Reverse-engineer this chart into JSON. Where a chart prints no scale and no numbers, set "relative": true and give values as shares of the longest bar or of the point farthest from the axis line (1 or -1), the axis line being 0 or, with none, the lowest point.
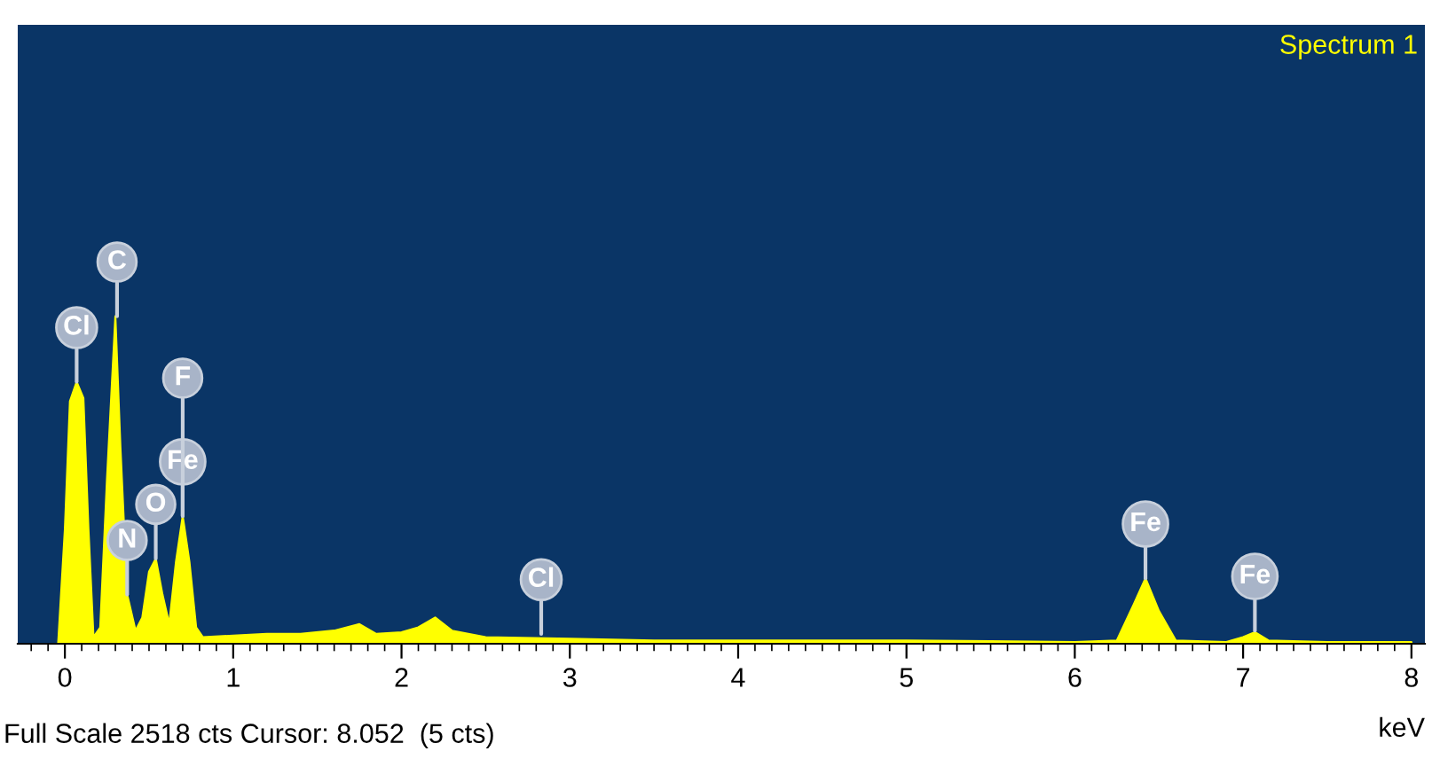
{
  "chart_data": {
    "type": "area",
    "relative": true,
    "xlabel": "keV",
    "xlim": [
      -0.28,
      8.08
    ],
    "xticks": [
      0,
      1,
      2,
      3,
      4,
      5,
      6,
      7,
      8
    ],
    "series": [
      {
        "name": "Spectrum 1",
        "color": "#ffff00",
        "x": [
          -0.04,
          0.0,
          0.03,
          0.07,
          0.11,
          0.14,
          0.17,
          0.21,
          0.25,
          0.3,
          0.33,
          0.37,
          0.42,
          0.46,
          0.5,
          0.54,
          0.58,
          0.62,
          0.66,
          0.7,
          0.74,
          0.78,
          0.82,
          1.0,
          1.2,
          1.4,
          1.6,
          1.75,
          1.85,
          2.0,
          2.1,
          2.2,
          2.3,
          2.5,
          3.0,
          3.5,
          4.0,
          4.5,
          5.0,
          5.5,
          6.0,
          6.25,
          6.35,
          6.42,
          6.5,
          6.6,
          6.9,
          7.0,
          7.07,
          7.15,
          7.5,
          8.0
        ],
        "values": [
          0,
          0.35,
          0.74,
          0.8,
          0.75,
          0.35,
          0.02,
          0.05,
          0.5,
          1.0,
          0.6,
          0.15,
          0.04,
          0.08,
          0.22,
          0.26,
          0.15,
          0.06,
          0.25,
          0.39,
          0.25,
          0.05,
          0.02,
          0.025,
          0.03,
          0.03,
          0.04,
          0.06,
          0.03,
          0.035,
          0.05,
          0.08,
          0.04,
          0.02,
          0.015,
          0.01,
          0.01,
          0.01,
          0.01,
          0.008,
          0.005,
          0.01,
          0.12,
          0.2,
          0.1,
          0.01,
          0.005,
          0.02,
          0.035,
          0.01,
          0.005,
          0.005
        ]
      }
    ],
    "annotations": [
      {
        "text": "C",
        "x": 0.31,
        "y": 1.0
      },
      {
        "text": "Cl",
        "x": 0.07,
        "y": 0.8
      },
      {
        "text": "Fe",
        "x": 0.7,
        "y": 0.39
      },
      {
        "text": "F",
        "x": 0.7,
        "y": 0.39
      },
      {
        "text": "O",
        "x": 0.54,
        "y": 0.26
      },
      {
        "text": "N",
        "x": 0.37,
        "y": 0.15
      },
      {
        "text": "Cl",
        "x": 2.83,
        "y": 0.03
      },
      {
        "text": "Fe",
        "x": 6.42,
        "y": 0.2
      },
      {
        "text": "Fe",
        "x": 7.07,
        "y": 0.04
      },
      "Full Scale 2518 cts Cursor: 8.052  (5 cts)"
    ]
  }
}
